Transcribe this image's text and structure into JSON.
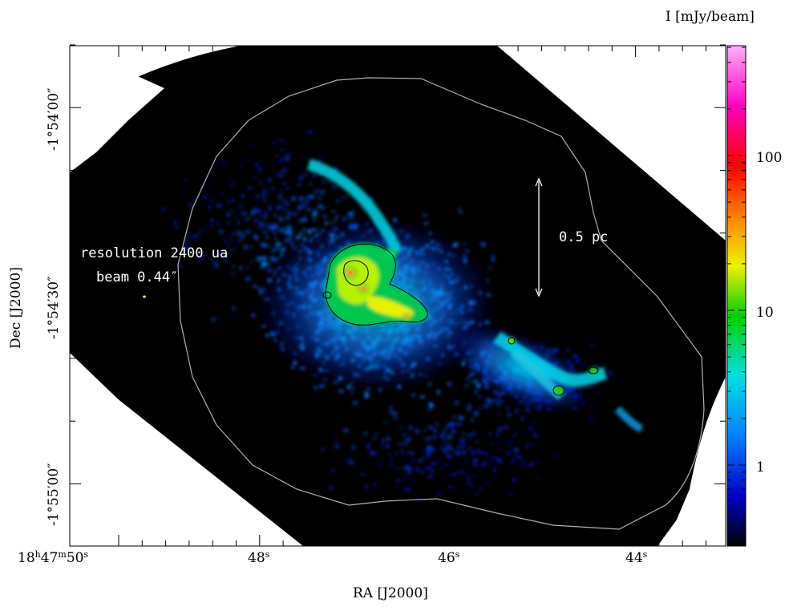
{
  "figure": {
    "colorbar_title": "I [mJy/beam]",
    "colorbar_ticks": [
      "100",
      "10",
      "1"
    ],
    "xlabel": "RA [J2000]",
    "ylabel": "Dec [J2000]",
    "x_ticks": [
      "18h47m50s",
      "48s",
      "46s",
      "44s"
    ],
    "y_ticks": [
      "-1°54′00″",
      "-1°54′30″",
      "-1°55′00″"
    ],
    "scale_bar_label": "0.5 pc",
    "resolution_label": "resolution 2400 ua",
    "beam_label": "beam 0.44″",
    "colormap": [
      "#000000",
      "#0000c8",
      "#0080ff",
      "#00e0e0",
      "#00d000",
      "#f0f000",
      "#ff8000",
      "#ff0000",
      "#ff00c0",
      "#ffb0ff"
    ]
  }
}
